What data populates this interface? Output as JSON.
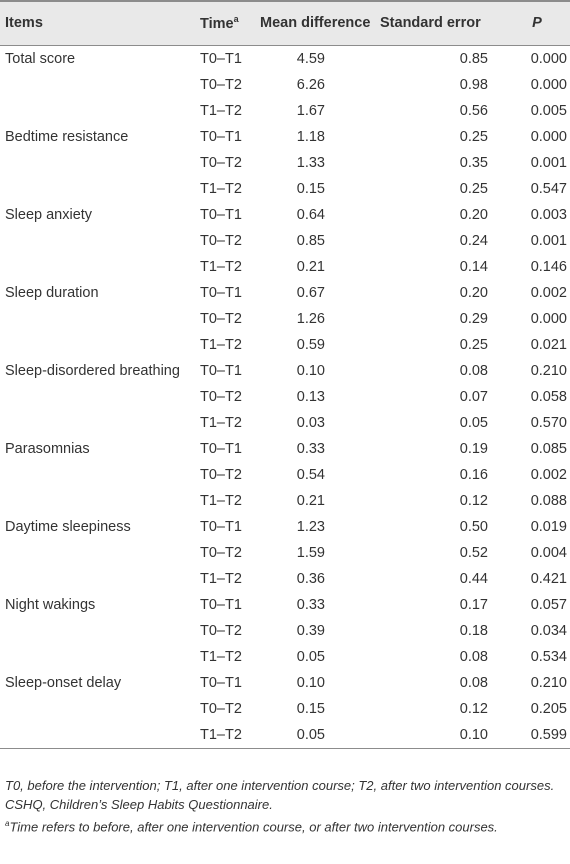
{
  "table": {
    "headers": {
      "items": "Items",
      "time": "Time",
      "time_sup": "a",
      "mean": "Mean difference",
      "se": "Standard error",
      "p": "P"
    },
    "groups": [
      {
        "item": "Total score",
        "rows": [
          {
            "time": "T0–T1",
            "mean": "4.59",
            "se": "0.85",
            "p": "0.000"
          },
          {
            "time": "T0–T2",
            "mean": "6.26",
            "se": "0.98",
            "p": "0.000"
          },
          {
            "time": "T1–T2",
            "mean": "1.67",
            "se": "0.56",
            "p": "0.005"
          }
        ]
      },
      {
        "item": "Bedtime resistance",
        "rows": [
          {
            "time": "T0–T1",
            "mean": "1.18",
            "se": "0.25",
            "p": "0.000"
          },
          {
            "time": "T0–T2",
            "mean": "1.33",
            "se": "0.35",
            "p": "0.001"
          },
          {
            "time": "T1–T2",
            "mean": "0.15",
            "se": "0.25",
            "p": "0.547"
          }
        ]
      },
      {
        "item": "Sleep anxiety",
        "rows": [
          {
            "time": "T0–T1",
            "mean": "0.64",
            "se": "0.20",
            "p": "0.003"
          },
          {
            "time": "T0–T2",
            "mean": "0.85",
            "se": "0.24",
            "p": "0.001"
          },
          {
            "time": "T1–T2",
            "mean": "0.21",
            "se": "0.14",
            "p": "0.146"
          }
        ]
      },
      {
        "item": "Sleep duration",
        "rows": [
          {
            "time": "T0–T1",
            "mean": "0.67",
            "se": "0.20",
            "p": "0.002"
          },
          {
            "time": "T0–T2",
            "mean": "1.26",
            "se": "0.29",
            "p": "0.000"
          },
          {
            "time": "T1–T2",
            "mean": "0.59",
            "se": "0.25",
            "p": "0.021"
          }
        ]
      },
      {
        "item": "Sleep-disordered breathing",
        "rows": [
          {
            "time": "T0–T1",
            "mean": "0.10",
            "se": "0.08",
            "p": "0.210"
          },
          {
            "time": "T0–T2",
            "mean": "0.13",
            "se": "0.07",
            "p": "0.058"
          },
          {
            "time": "T1–T2",
            "mean": "0.03",
            "se": "0.05",
            "p": "0.570"
          }
        ]
      },
      {
        "item": "Parasomnias",
        "rows": [
          {
            "time": "T0–T1",
            "mean": "0.33",
            "se": "0.19",
            "p": "0.085"
          },
          {
            "time": "T0–T2",
            "mean": "0.54",
            "se": "0.16",
            "p": "0.002"
          },
          {
            "time": "T1–T2",
            "mean": "0.21",
            "se": "0.12",
            "p": "0.088"
          }
        ]
      },
      {
        "item": "Daytime sleepiness",
        "rows": [
          {
            "time": "T0–T1",
            "mean": "1.23",
            "se": "0.50",
            "p": "0.019"
          },
          {
            "time": "T0–T2",
            "mean": "1.59",
            "se": "0.52",
            "p": "0.004"
          },
          {
            "time": "T1–T2",
            "mean": "0.36",
            "se": "0.44",
            "p": "0.421"
          }
        ]
      },
      {
        "item": "Night wakings",
        "rows": [
          {
            "time": "T0–T1",
            "mean": "0.33",
            "se": "0.17",
            "p": "0.057"
          },
          {
            "time": "T0–T2",
            "mean": "0.39",
            "se": "0.18",
            "p": "0.034"
          },
          {
            "time": "T1–T2",
            "mean": "0.05",
            "se": "0.08",
            "p": "0.534"
          }
        ]
      },
      {
        "item": "Sleep-onset delay",
        "rows": [
          {
            "time": "T0–T1",
            "mean": "0.10",
            "se": "0.08",
            "p": "0.210"
          },
          {
            "time": "T0–T2",
            "mean": "0.15",
            "se": "0.12",
            "p": "0.205"
          },
          {
            "time": "T1–T2",
            "mean": "0.05",
            "se": "0.10",
            "p": "0.599"
          }
        ]
      }
    ]
  },
  "notes": {
    "definitions": "T0, before the intervention; T1, after one intervention course; T2, after two intervention courses.",
    "abbrev": "CSHQ, Children’s Sleep Habits Questionnaire.",
    "footnote_mark": "a",
    "footnote": "Time refers to before, after one intervention course, or after two intervention courses."
  }
}
